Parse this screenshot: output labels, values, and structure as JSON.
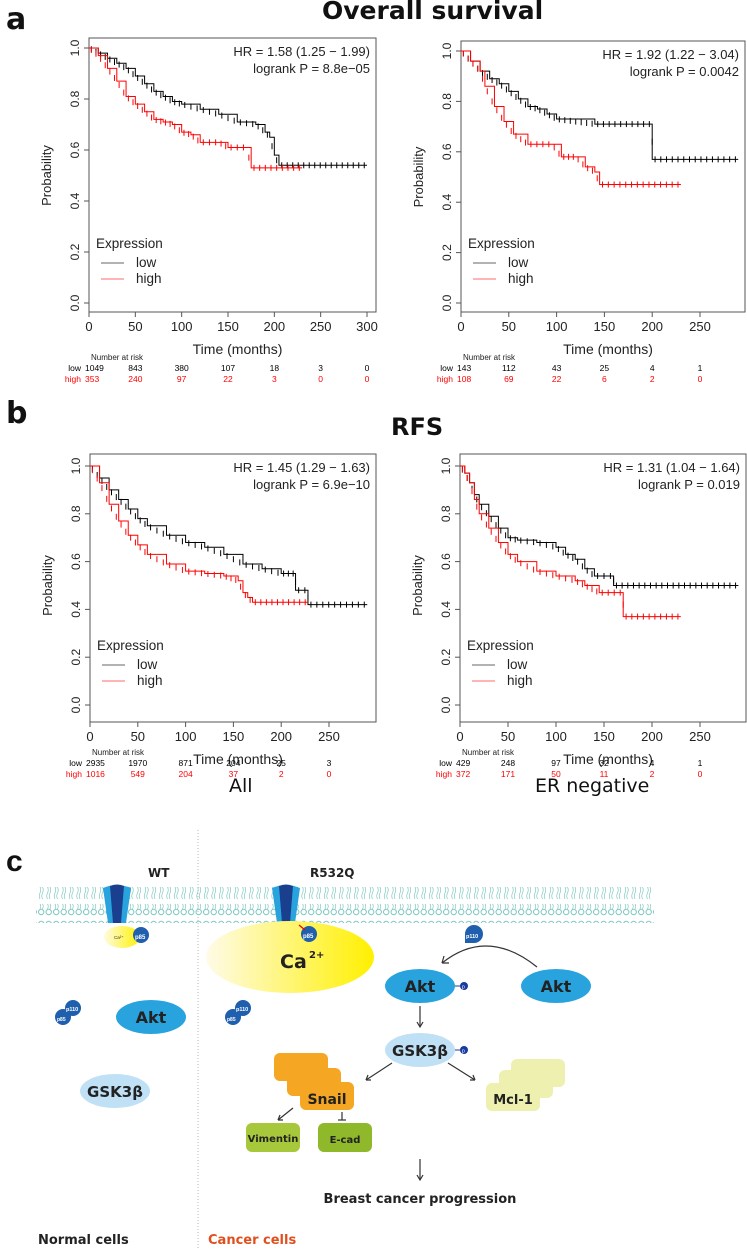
{
  "figure": {
    "panels": {
      "a": {
        "letter": "a",
        "title": "Overall survival"
      },
      "b": {
        "letter": "b",
        "title": "RFS"
      },
      "c": {
        "letter": "c"
      }
    },
    "subset_labels": {
      "all": "All",
      "er_negative": "ER negative"
    }
  },
  "chart_data": [
    {
      "id": "os-all",
      "type": "line",
      "subtype": "kaplan-meier",
      "title": "",
      "xlabel": "Time (months)",
      "ylabel": "Probability",
      "xlim": [
        0,
        300
      ],
      "ylim": [
        0,
        1
      ],
      "xticks": [
        0,
        50,
        100,
        150,
        200,
        250,
        300
      ],
      "yticks": [
        "0.0",
        "0.2",
        "0.4",
        "0.6",
        "0.8",
        "1.0"
      ],
      "annotation": [
        "HR = 1.58 (1.25 − 1.99)",
        "logrank P = 8.8e−05"
      ],
      "legend": {
        "title": "Expression",
        "position": "bottom-left",
        "entries": [
          {
            "label": "low",
            "color": "#000000"
          },
          {
            "label": "high",
            "color": "#ff0000"
          }
        ]
      },
      "series": [
        {
          "name": "low",
          "color": "#000000",
          "x": [
            0,
            10,
            20,
            30,
            40,
            50,
            60,
            70,
            80,
            90,
            100,
            120,
            140,
            160,
            180,
            190,
            195,
            200,
            205,
            300
          ],
          "y": [
            1.0,
            0.98,
            0.96,
            0.94,
            0.92,
            0.89,
            0.86,
            0.83,
            0.81,
            0.79,
            0.78,
            0.76,
            0.74,
            0.71,
            0.7,
            0.67,
            0.65,
            0.58,
            0.54,
            0.54
          ]
        },
        {
          "name": "high",
          "color": "#ff0000",
          "x": [
            0,
            10,
            20,
            30,
            40,
            50,
            60,
            70,
            80,
            90,
            100,
            110,
            120,
            140,
            150,
            170,
            175,
            230
          ],
          "y": [
            1.0,
            0.97,
            0.92,
            0.87,
            0.81,
            0.78,
            0.75,
            0.72,
            0.71,
            0.7,
            0.67,
            0.66,
            0.63,
            0.63,
            0.61,
            0.61,
            0.53,
            0.53
          ]
        }
      ],
      "at_risk": {
        "header": "Number at risk",
        "times": [
          0,
          50,
          100,
          150,
          200,
          250,
          300
        ],
        "rows": [
          {
            "label": "low",
            "color": "#000000",
            "values": [
              "1049",
              "843",
              "380",
              "107",
              "18",
              "3",
              "0"
            ]
          },
          {
            "label": "high",
            "color": "#ff0000",
            "values": [
              "353",
              "240",
              "97",
              "22",
              "3",
              "0",
              "0"
            ]
          }
        ]
      }
    },
    {
      "id": "os-er-neg",
      "type": "line",
      "subtype": "kaplan-meier",
      "title": "",
      "xlabel": "Time (months)",
      "ylabel": "Probability",
      "xlim": [
        0,
        290
      ],
      "ylim": [
        0,
        1
      ],
      "xticks": [
        0,
        50,
        100,
        150,
        200,
        250
      ],
      "yticks": [
        "0.0",
        "0.2",
        "0.4",
        "0.6",
        "0.8",
        "1.0"
      ],
      "annotation": [
        "HR = 1.92 (1.22 − 3.04)",
        "logrank P = 0.0042"
      ],
      "legend": {
        "title": "Expression",
        "position": "bottom-left",
        "entries": [
          {
            "label": "low",
            "color": "#000000"
          },
          {
            "label": "high",
            "color": "#ff0000"
          }
        ]
      },
      "series": [
        {
          "name": "low",
          "color": "#000000",
          "x": [
            0,
            10,
            20,
            30,
            40,
            50,
            60,
            70,
            80,
            90,
            100,
            140,
            200,
            200,
            290
          ],
          "y": [
            1.0,
            0.96,
            0.92,
            0.89,
            0.87,
            0.84,
            0.81,
            0.78,
            0.77,
            0.75,
            0.73,
            0.71,
            0.71,
            0.57,
            0.57
          ]
        },
        {
          "name": "high",
          "color": "#ff0000",
          "x": [
            0,
            10,
            20,
            25,
            35,
            45,
            55,
            70,
            95,
            105,
            120,
            130,
            140,
            145,
            230
          ],
          "y": [
            1.0,
            0.96,
            0.92,
            0.86,
            0.78,
            0.72,
            0.67,
            0.63,
            0.63,
            0.58,
            0.58,
            0.54,
            0.52,
            0.47,
            0.47
          ]
        }
      ],
      "at_risk": {
        "header": "Number at risk",
        "times": [
          0,
          50,
          100,
          150,
          200,
          250
        ],
        "rows": [
          {
            "label": "low",
            "color": "#000000",
            "values": [
              "143",
              "112",
              "43",
              "25",
              "4",
              "1"
            ]
          },
          {
            "label": "high",
            "color": "#ff0000",
            "values": [
              "108",
              "69",
              "22",
              "6",
              "2",
              "0"
            ]
          }
        ]
      }
    },
    {
      "id": "rfs-all",
      "type": "line",
      "subtype": "kaplan-meier",
      "title": "",
      "xlabel": "Time (months)",
      "ylabel": "Probability",
      "xlim": [
        0,
        290
      ],
      "ylim": [
        0,
        1
      ],
      "xticks": [
        0,
        50,
        100,
        150,
        200,
        250
      ],
      "yticks": [
        "0.0",
        "0.2",
        "0.4",
        "0.6",
        "0.8",
        "1.0"
      ],
      "annotation": [
        "HR = 1.45 (1.29 − 1.63)",
        "logrank P = 6.9e−10"
      ],
      "legend": {
        "title": "Expression",
        "position": "bottom-left",
        "entries": [
          {
            "label": "low",
            "color": "#000000"
          },
          {
            "label": "high",
            "color": "#ff0000"
          }
        ]
      },
      "series": [
        {
          "name": "low",
          "color": "#000000",
          "x": [
            0,
            10,
            20,
            30,
            40,
            50,
            60,
            80,
            100,
            120,
            140,
            160,
            180,
            200,
            215,
            215,
            228,
            228,
            290
          ],
          "y": [
            1.0,
            0.95,
            0.9,
            0.86,
            0.82,
            0.78,
            0.75,
            0.71,
            0.68,
            0.66,
            0.63,
            0.59,
            0.57,
            0.55,
            0.55,
            0.48,
            0.48,
            0.42,
            0.42
          ]
        },
        {
          "name": "high",
          "color": "#ff0000",
          "x": [
            0,
            10,
            20,
            30,
            40,
            50,
            60,
            80,
            100,
            120,
            140,
            155,
            160,
            165,
            170,
            228
          ],
          "y": [
            1.0,
            0.93,
            0.84,
            0.77,
            0.71,
            0.67,
            0.63,
            0.59,
            0.56,
            0.55,
            0.54,
            0.52,
            0.47,
            0.45,
            0.43,
            0.43
          ]
        }
      ],
      "at_risk": {
        "header": "Number at risk",
        "times": [
          0,
          50,
          100,
          150,
          200,
          250
        ],
        "rows": [
          {
            "label": "low",
            "color": "#000000",
            "values": [
              "2935",
              "1970",
              "871",
              "204",
              "25",
              "3"
            ]
          },
          {
            "label": "high",
            "color": "#ff0000",
            "values": [
              "1016",
              "549",
              "204",
              "37",
              "2",
              "0"
            ]
          }
        ]
      }
    },
    {
      "id": "rfs-er-neg",
      "type": "line",
      "subtype": "kaplan-meier",
      "title": "",
      "xlabel": "Time (months)",
      "ylabel": "Probability",
      "xlim": [
        0,
        290
      ],
      "ylim": [
        0,
        1
      ],
      "xticks": [
        0,
        50,
        100,
        150,
        200,
        250
      ],
      "yticks": [
        "0.0",
        "0.2",
        "0.4",
        "0.6",
        "0.8",
        "1.0"
      ],
      "annotation": [
        "HR = 1.31 (1.04 − 1.64)",
        "logrank P = 0.019"
      ],
      "legend": {
        "title": "Expression",
        "position": "bottom-left",
        "entries": [
          {
            "label": "low",
            "color": "#000000"
          },
          {
            "label": "high",
            "color": "#ff0000"
          }
        ]
      },
      "series": [
        {
          "name": "low",
          "color": "#000000",
          "x": [
            0,
            5,
            10,
            15,
            20,
            30,
            40,
            50,
            60,
            80,
            100,
            110,
            120,
            130,
            140,
            160,
            160,
            290
          ],
          "y": [
            1.0,
            0.97,
            0.93,
            0.88,
            0.84,
            0.79,
            0.74,
            0.7,
            0.69,
            0.68,
            0.66,
            0.63,
            0.61,
            0.57,
            0.54,
            0.54,
            0.5,
            0.5
          ]
        },
        {
          "name": "high",
          "color": "#ff0000",
          "x": [
            0,
            5,
            10,
            15,
            20,
            30,
            40,
            50,
            60,
            80,
            100,
            120,
            130,
            145,
            170,
            170,
            230
          ],
          "y": [
            1.0,
            0.97,
            0.93,
            0.86,
            0.8,
            0.74,
            0.68,
            0.63,
            0.6,
            0.56,
            0.54,
            0.52,
            0.5,
            0.47,
            0.47,
            0.37,
            0.37
          ]
        }
      ],
      "at_risk": {
        "header": "Number at risk",
        "times": [
          0,
          50,
          100,
          150,
          200,
          250
        ],
        "rows": [
          {
            "label": "low",
            "color": "#000000",
            "values": [
              "429",
              "248",
              "97",
              "32",
              "4",
              "1"
            ]
          },
          {
            "label": "high",
            "color": "#ff0000",
            "values": [
              "372",
              "171",
              "50",
              "11",
              "2",
              "0"
            ]
          }
        ]
      }
    }
  ],
  "diagram": {
    "wt_label": "WT",
    "mutant_label": "R532Q",
    "normal_label": "Normal cells",
    "cancer_label": "Cancer cells",
    "ca_small": "Ca²⁺",
    "ca_large": "Ca",
    "ca_sup": "2+",
    "p85": "p85",
    "p110": "p110",
    "p": "p",
    "akt": "Akt",
    "gsk": "GSK3β",
    "snail": "Snail",
    "vimentin": "Vimentin",
    "ecad": "E-cad",
    "mcl1": "Mcl-1",
    "outcome": "Breast cancer progression",
    "colors": {
      "membrane": "#7fc8c0",
      "channel_dark": "#1a3f8f",
      "channel_light": "#29a3dd",
      "akt": "#29a3dd",
      "gsk": "#bfe0f5",
      "snail": "#f5a623",
      "green": "#a6c83a",
      "mcl": "#eef0b0",
      "calcium": "#fff000",
      "cancer_text": "#e0501e"
    }
  }
}
